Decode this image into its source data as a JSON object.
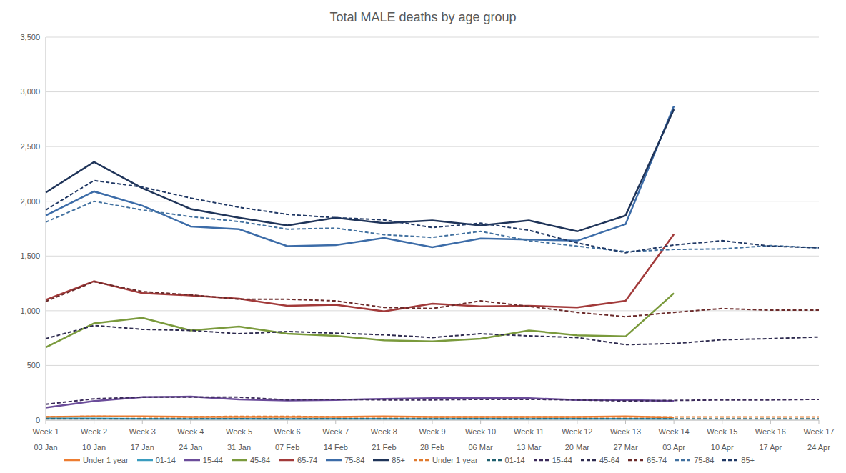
{
  "chart_data": {
    "type": "line",
    "title": "Total MALE deaths by age group",
    "categories": [
      "Week 1\n03 Jan",
      "Week 2\n10 Jan",
      "Week 3\n17 Jan",
      "Week 4\n24 Jan",
      "Week 5\n31 Jan",
      "Week 6\n07 Feb",
      "Week 7\n14 Feb",
      "Week 8\n21 Feb",
      "Week 9\n28 Feb",
      "Week 10\n06 Mar",
      "Week 11\n13 Mar",
      "Week 12\n20 Mar",
      "Week 13\n27 Mar",
      "Week 14\n03 Apr",
      "Week 15\n10 Apr",
      "Week 16\n17 Apr",
      "Week 17\n24 Apr"
    ],
    "ylim": [
      0,
      3500
    ],
    "yticks": [
      0,
      500,
      {
        "value": 1000,
        "label": "1,000"
      },
      {
        "value": 1500,
        "label": "1,500"
      },
      {
        "value": 2000,
        "label": "2,000"
      },
      {
        "value": 2500,
        "label": "2,500"
      },
      {
        "value": 3000,
        "label": "3,000"
      },
      {
        "value": 3500,
        "label": "3,500"
      }
    ],
    "grid": true,
    "legend": "bottom",
    "series": [
      {
        "name": "Under 1 year",
        "color": "#ED7D31",
        "line_style": "solid",
        "values": [
          30,
          35,
          35,
          30,
          30,
          30,
          30,
          35,
          30,
          30,
          30,
          30,
          35,
          25,
          null,
          null,
          null
        ]
      },
      {
        "name": "01-14",
        "color": "#3A9CBF",
        "line_style": "solid",
        "values": [
          15,
          15,
          12,
          10,
          12,
          10,
          12,
          12,
          10,
          12,
          10,
          12,
          12,
          10,
          null,
          null,
          null
        ]
      },
      {
        "name": "15-44",
        "color": "#6B4C9A",
        "line_style": "solid",
        "values": [
          115,
          175,
          210,
          215,
          190,
          180,
          185,
          195,
          200,
          200,
          200,
          185,
          185,
          175,
          null,
          null,
          null
        ]
      },
      {
        "name": "45-64",
        "color": "#7A9A3C",
        "line_style": "solid",
        "values": [
          665,
          885,
          935,
          820,
          855,
          790,
          770,
          730,
          720,
          745,
          820,
          775,
          765,
          1160,
          null,
          null,
          null
        ]
      },
      {
        "name": "65-74",
        "color": "#A23A3A",
        "line_style": "solid",
        "values": [
          1100,
          1270,
          1160,
          1140,
          1110,
          1045,
          1055,
          995,
          1065,
          1040,
          1045,
          1030,
          1090,
          1700,
          null,
          null,
          null
        ]
      },
      {
        "name": "75-84",
        "color": "#3C6CA8",
        "line_style": "solid",
        "values": [
          1870,
          2090,
          1960,
          1770,
          1745,
          1590,
          1600,
          1665,
          1580,
          1660,
          1650,
          1640,
          1790,
          2870,
          null,
          null,
          null
        ]
      },
      {
        "name": "85+",
        "color": "#1F3459",
        "line_style": "solid",
        "values": [
          2080,
          2360,
          2120,
          1930,
          1850,
          1780,
          1850,
          1800,
          1825,
          1780,
          1825,
          1725,
          1870,
          2840,
          null,
          null,
          null
        ]
      },
      {
        "name": "Under 1 year",
        "color": "#E07A2E",
        "line_style": "dashed",
        "values": [
          30,
          35,
          30,
          30,
          35,
          35,
          30,
          30,
          30,
          30,
          30,
          30,
          30,
          30,
          30,
          30,
          30
        ]
      },
      {
        "name": "01-14",
        "color": "#1F5F6E",
        "line_style": "dashed",
        "values": [
          12,
          12,
          12,
          12,
          12,
          12,
          12,
          12,
          12,
          12,
          12,
          12,
          12,
          12,
          12,
          12,
          12
        ]
      },
      {
        "name": "15-44",
        "color": "#3B2A5A",
        "line_style": "dashed",
        "values": [
          145,
          195,
          210,
          210,
          210,
          185,
          190,
          185,
          185,
          190,
          190,
          185,
          175,
          180,
          185,
          185,
          190
        ]
      },
      {
        "name": "45-64",
        "color": "#2E2B4F",
        "line_style": "dashed",
        "values": [
          745,
          865,
          830,
          820,
          790,
          810,
          795,
          780,
          755,
          790,
          770,
          755,
          690,
          700,
          735,
          745,
          760
        ]
      },
      {
        "name": "65-74",
        "color": "#6B2A2A",
        "line_style": "dashed",
        "values": [
          1085,
          1265,
          1175,
          1145,
          1105,
          1105,
          1090,
          1030,
          1020,
          1090,
          1040,
          985,
          945,
          985,
          1020,
          1005,
          1005
        ]
      },
      {
        "name": "75-84",
        "color": "#41709F",
        "line_style": "dashed",
        "values": [
          1810,
          2000,
          1920,
          1860,
          1815,
          1745,
          1755,
          1695,
          1670,
          1725,
          1640,
          1590,
          1540,
          1560,
          1565,
          1595,
          1575
        ]
      },
      {
        "name": "85+",
        "color": "#203864",
        "line_style": "dashed",
        "values": [
          1920,
          2190,
          2130,
          2030,
          1945,
          1880,
          1850,
          1830,
          1760,
          1800,
          1735,
          1620,
          1530,
          1600,
          1640,
          1590,
          1575
        ]
      }
    ]
  }
}
